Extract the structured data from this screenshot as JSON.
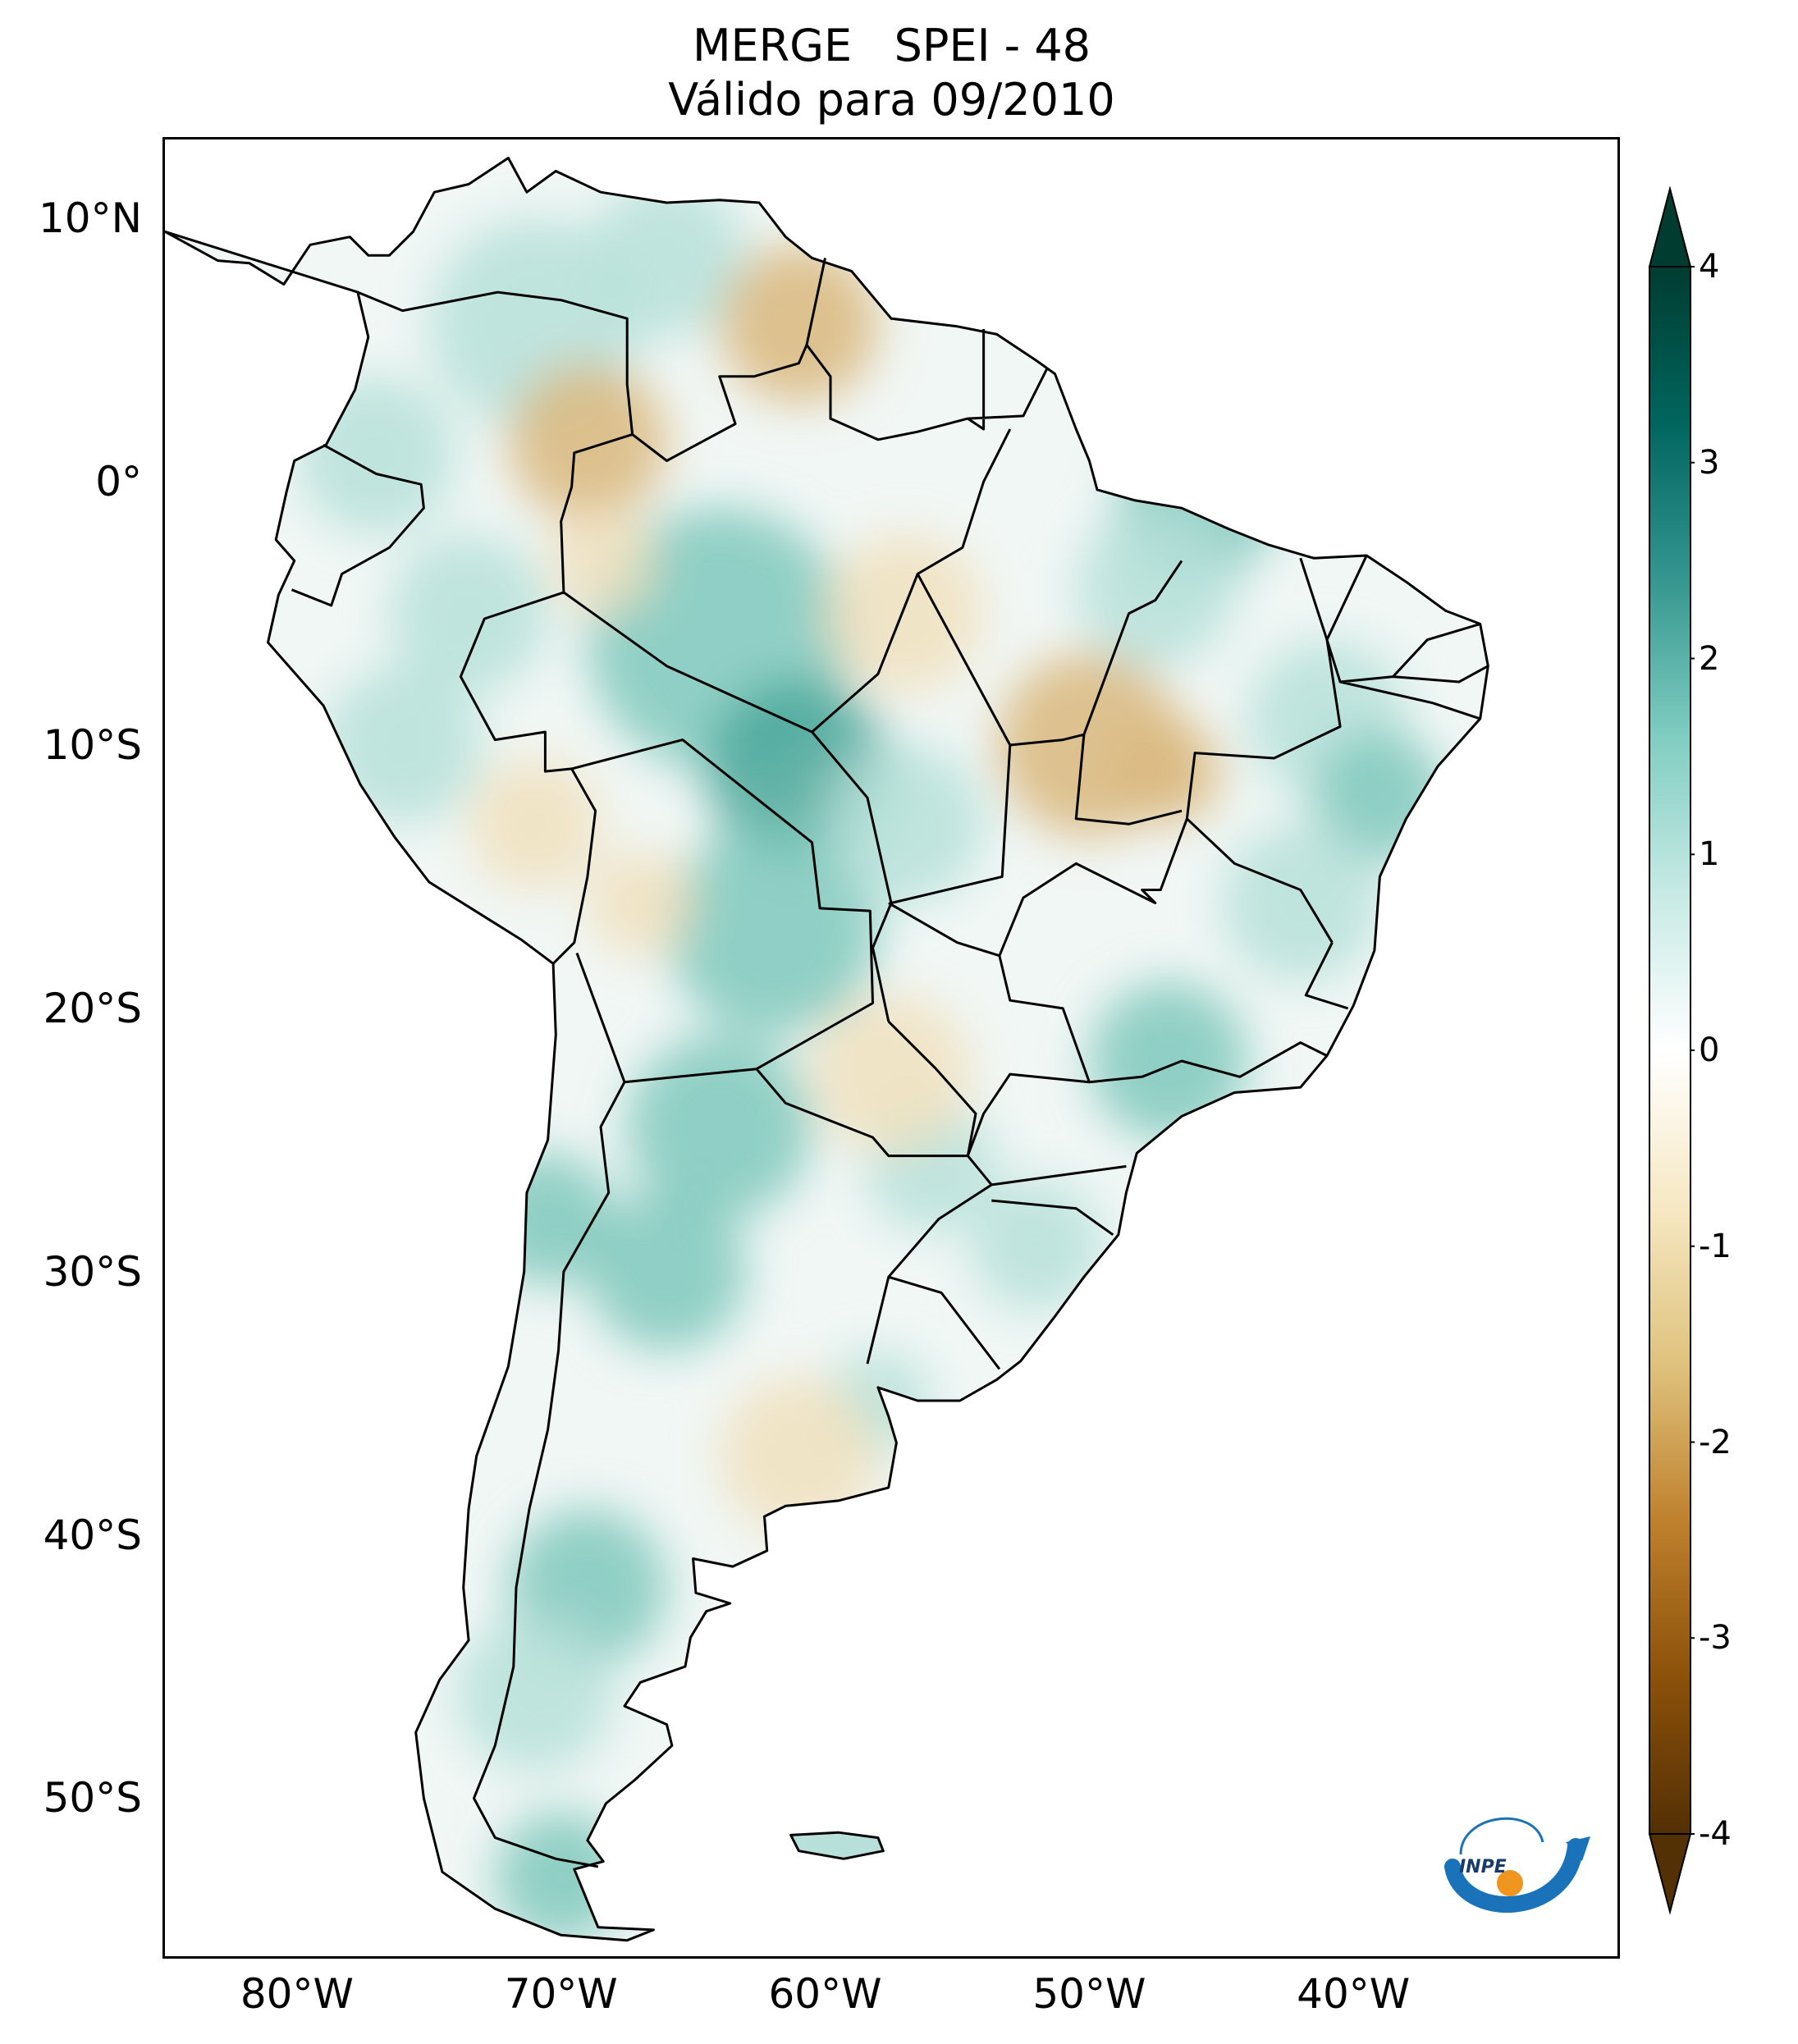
{
  "title": {
    "line1": "MERGE   SPEI - 48",
    "line2": "Válido para 09/2010"
  },
  "map": {
    "extent": {
      "lon_min": -85,
      "lon_max": -30,
      "lat_min": -56,
      "lat_max": 13
    },
    "lat_ticks": [
      {
        "value": 10,
        "label": "10°N"
      },
      {
        "value": 0,
        "label": "0°"
      },
      {
        "value": -10,
        "label": "10°S"
      },
      {
        "value": -20,
        "label": "20°S"
      },
      {
        "value": -30,
        "label": "30°S"
      },
      {
        "value": -40,
        "label": "40°S"
      },
      {
        "value": -50,
        "label": "50°S"
      }
    ],
    "lon_ticks": [
      {
        "value": -80,
        "label": "80°W"
      },
      {
        "value": -70,
        "label": "70°W"
      },
      {
        "value": -60,
        "label": "60°W"
      },
      {
        "value": -50,
        "label": "50°W"
      },
      {
        "value": -40,
        "label": "40°W"
      }
    ],
    "colors": {
      "land_base": "#f1f7f5",
      "wet_light": "#b6e0d9",
      "wet_mid": "#7fc8bc",
      "wet_strong": "#4aa79a",
      "dry_light": "#f0e0bd",
      "dry_mid": "#d9b77c",
      "border": "#000000"
    }
  },
  "colorbar": {
    "min": -4,
    "max": 4,
    "extend": "both",
    "ticks": [
      {
        "value": 4,
        "label": "4"
      },
      {
        "value": 3,
        "label": "3"
      },
      {
        "value": 2,
        "label": "2"
      },
      {
        "value": 1,
        "label": "1"
      },
      {
        "value": 0,
        "label": "0"
      },
      {
        "value": -1,
        "label": "-1"
      },
      {
        "value": -2,
        "label": "-2"
      },
      {
        "value": -3,
        "label": "-3"
      },
      {
        "value": -4,
        "label": "-4"
      }
    ],
    "colors": [
      "#543005",
      "#8c510a",
      "#bf812d",
      "#dfc27d",
      "#f6e8c3",
      "#ffffff",
      "#c7eae5",
      "#80cdc1",
      "#35978f",
      "#01665e",
      "#003c30"
    ]
  },
  "logo": {
    "text": "INPE",
    "colors": {
      "blue": "#1a73b8",
      "orange": "#f0961e"
    }
  }
}
